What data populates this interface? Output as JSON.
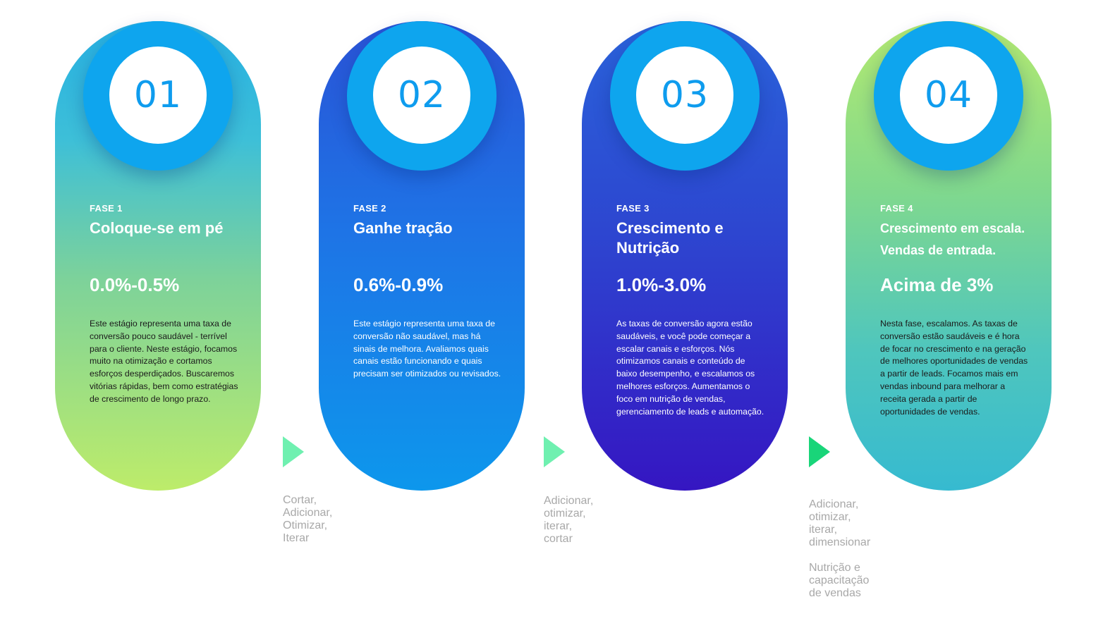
{
  "phases": [
    {
      "number": "01",
      "phase": "FASE 1",
      "title": "Coloque-se em pé",
      "rate": "0.0%-0.5%",
      "description": "Este estágio representa uma taxa de conversão pouco saudável - terrível para o cliente. Neste estágio, focamos muito na otimização e cortamos esforços desperdiçados. Buscaremos vitórias rápidas, bem como estratégias de crescimento de longo prazo."
    },
    {
      "number": "02",
      "phase": "FASE 2",
      "title": "Ganhe tração",
      "rate": "0.6%-0.9%",
      "description": "Este estágio representa uma taxa de conversão não saudável, mas há sinais de melhora. Avaliamos quais canais estão funcionando e quais precisam ser otimizados ou revisados."
    },
    {
      "number": "03",
      "phase": "FASE 3",
      "title": "Crescimento e Nutrição",
      "rate": "1.0%-3.0%",
      "description": "As taxas de conversão agora estão saudáveis, e você pode começar a escalar canais e esforços. Nós otimizamos canais e conteúdo de baixo desempenho, e escalamos os melhores esforços. Aumentamos o foco em nutrição de vendas, gerenciamento de leads e automação."
    },
    {
      "number": "04",
      "phase": "FASE 4",
      "title": "Crescimento em escala. Vendas de entrada.",
      "rate": "Acima de 3%",
      "description": "Nesta fase, escalamos. As taxas de conversão estão saudáveis e é hora de focar no crescimento e na geração de melhores oportunidades de vendas a partir de leads. Focamos mais em vendas inbound para melhorar a receita gerada a partir de oportunidades de vendas."
    }
  ],
  "transitions": [
    {
      "actions": "Cortar,\nAdicionar,\nOtimizar,\nIterar"
    },
    {
      "actions": "Adicionar,\notimizar,\niterar,\ncortar"
    },
    {
      "actions": "Adicionar,\notimizar,\niterar,\ndimensionar",
      "extra": "Nutrição e\ncapacitação\nde vendas"
    }
  ]
}
